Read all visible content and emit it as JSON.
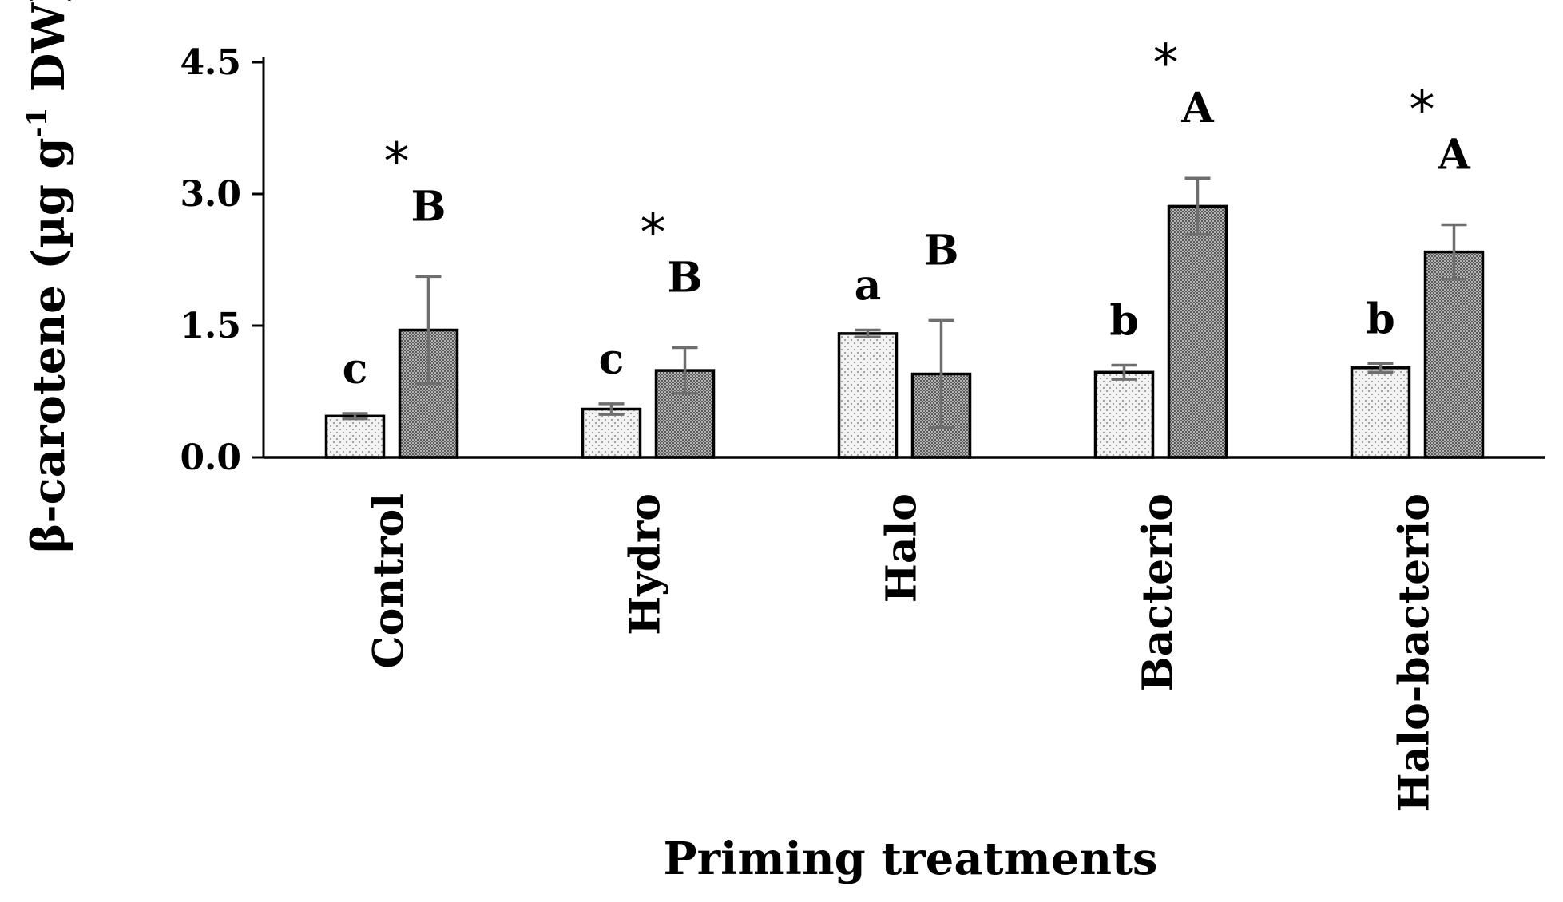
{
  "chart_data": {
    "type": "bar",
    "categories": [
      "Control",
      "Hydro",
      "Halo",
      "Bacterio",
      "Halo-bacterio"
    ],
    "xlabel": "Priming treatments",
    "ylabel_main": "β-carotene  (µg g",
    "ylabel_sup": "-1",
    "ylabel_end": " DW)",
    "ylim": [
      0,
      4.5
    ],
    "yticks": [
      "0.0",
      "1.5",
      "3.0",
      "4.5"
    ],
    "ytick_values": [
      0,
      1.5,
      3.0,
      4.5
    ],
    "grid": false,
    "legend": "none",
    "series": [
      {
        "values": [
          0.47,
          0.55,
          1.41,
          0.97,
          1.02
        ],
        "errors": [
          0.03,
          0.06,
          0.04,
          0.08,
          0.05
        ],
        "letters": [
          "c",
          "c",
          "a",
          "b",
          "b"
        ],
        "fill": "dotted-light"
      },
      {
        "values": [
          1.45,
          0.99,
          0.95,
          2.86,
          2.34
        ],
        "errors": [
          0.61,
          0.26,
          0.61,
          0.32,
          0.31
        ],
        "letters": [
          "B",
          "B",
          "B",
          "A",
          "A"
        ],
        "fill": "stippled-dark"
      }
    ],
    "significance": [
      "*",
      "*",
      "",
      "*",
      "*"
    ]
  },
  "colors": {
    "axis": "#000000",
    "error_bar": "#6e6e6e",
    "series1_fill": "#f2f2f2",
    "series1_dots": "#9a9a9a",
    "series2_fill": "#a8a8a8",
    "series2_dots": "#5a5a5a"
  }
}
